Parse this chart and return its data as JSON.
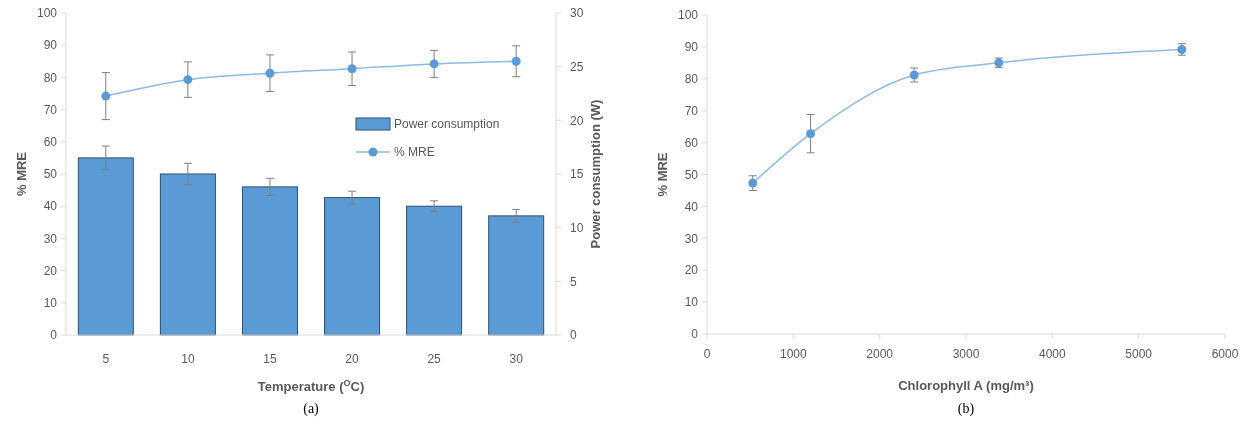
{
  "chart_data": [
    {
      "type": "bar",
      "categories": [
        "5",
        "10",
        "15",
        "20",
        "25",
        "30"
      ],
      "xlabel": "Temperature ($^{O}$C)",
      "ylabel": "% MRE",
      "y2label": "Power consumption (W)",
      "ylim": [
        0,
        100
      ],
      "yticks": [
        0,
        10,
        20,
        30,
        40,
        50,
        60,
        70,
        80,
        90,
        100
      ],
      "y2lim": [
        0,
        30
      ],
      "y2ticks": [
        0,
        5,
        10,
        15,
        20,
        25,
        30
      ],
      "legend": "right",
      "marker": "circle",
      "annotations": [
        "(a)"
      ],
      "series": [
        {
          "name": "Power consumption",
          "axis": "y2",
          "color": "#5b9bd5",
          "values": [
            16.5,
            15,
            13.8,
            12.8,
            12,
            11.1
          ],
          "errors": [
            1.1,
            1.0,
            0.8,
            0.6,
            0.5,
            0.6
          ]
        },
        {
          "name": "% MRE",
          "type": "line",
          "color": "#5b9bd5",
          "values": [
            74.2,
            79.3,
            81.3,
            82.7,
            84.2,
            85
          ],
          "errors": [
            7.3,
            5.5,
            5.7,
            5.2,
            4.2,
            4.8
          ]
        }
      ]
    },
    {
      "type": "line",
      "x": [
        530,
        1200,
        2400,
        3380,
        5500
      ],
      "xlabel": "Chlorophyll A (mg/m³)",
      "ylabel": "% MRE",
      "xlim": [
        0,
        6000
      ],
      "xticks": [
        0,
        1000,
        2000,
        3000,
        4000,
        5000,
        6000
      ],
      "ylim": [
        0,
        100
      ],
      "yticks": [
        0,
        10,
        20,
        30,
        40,
        50,
        60,
        70,
        80,
        90,
        100
      ],
      "marker": "circle",
      "annotations": [
        "(b)"
      ],
      "series": [
        {
          "color": "#5b9bd5",
          "values": [
            47.3,
            62.8,
            81.2,
            85,
            89.2
          ],
          "errors": [
            2.3,
            6,
            2.2,
            1.5,
            1.8
          ]
        }
      ]
    }
  ]
}
